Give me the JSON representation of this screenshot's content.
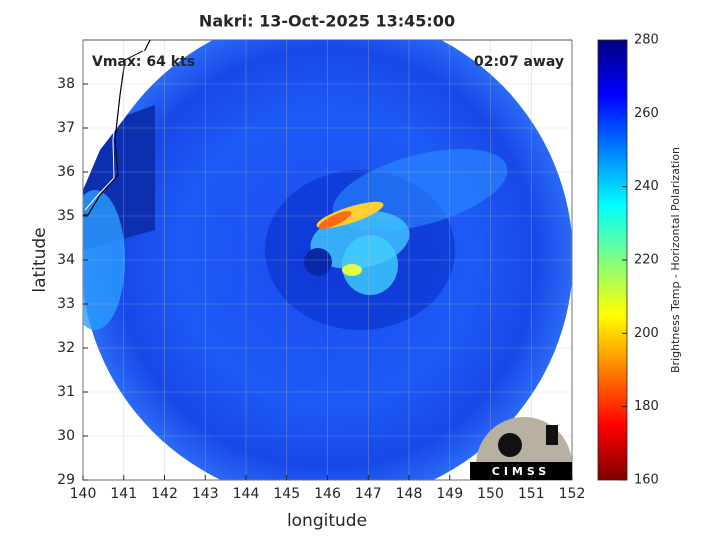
{
  "chart_data": {
    "type": "map",
    "title": "Nakri: 13-Oct-2025 13:45:00",
    "annotations": [
      "Vmax: 64 kts",
      "02:07 away"
    ],
    "xlabel": "longitude",
    "ylabel": "latitude",
    "xlim": [
      140,
      152
    ],
    "ylim": [
      29,
      39
    ],
    "xticks": [
      140,
      141,
      142,
      143,
      144,
      145,
      146,
      147,
      148,
      149,
      150,
      151,
      152
    ],
    "yticks": [
      29,
      30,
      31,
      32,
      33,
      34,
      35,
      36,
      37,
      38
    ],
    "grid": true,
    "colorbar": {
      "label": "Brightness Temp - Horizontal Polarization",
      "lim": [
        160,
        280
      ],
      "ticks": [
        160,
        180,
        200,
        220,
        240,
        260,
        280
      ],
      "colormap": [
        "#800000",
        "#ff0000",
        "#ff8000",
        "#ffff00",
        "#80ff80",
        "#00ffff",
        "#0080ff",
        "#0000ff",
        "#000080"
      ]
    },
    "logo_text": "CIMSS"
  }
}
